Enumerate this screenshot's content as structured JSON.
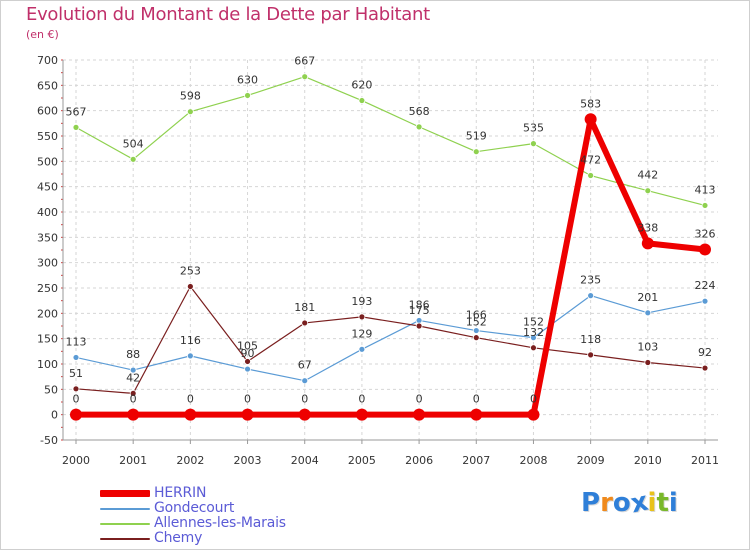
{
  "header": {
    "title": "Evolution du Montant de la Dette par Habitant",
    "subtitle": "(en €)"
  },
  "logo": {
    "letters": [
      "P",
      "r",
      "o",
      "x",
      "i",
      "t",
      "i"
    ],
    "colors": [
      "#2f7fd8",
      "#f08a1c",
      "#2f7fd8",
      "#2f7fd8",
      "#e8c21a",
      "#79b82a",
      "#2f7fd8"
    ]
  },
  "chart_data": {
    "type": "line",
    "title": "Evolution du Montant de la Dette par Habitant",
    "ylabel": "(en €)",
    "xlabel": "",
    "categories": [
      "2000",
      "2001",
      "2002",
      "2003",
      "2004",
      "2005",
      "2006",
      "2007",
      "2008",
      "2009",
      "2010",
      "2011"
    ],
    "ylim": [
      -50,
      700
    ],
    "yticks": [
      -50,
      0,
      50,
      100,
      150,
      200,
      250,
      300,
      350,
      400,
      450,
      500,
      550,
      600,
      650,
      700
    ],
    "grid": true,
    "legend_position": "bottom-left",
    "series": [
      {
        "name": "HERRIN",
        "color": "#ee0000",
        "values": [
          0,
          0,
          0,
          0,
          0,
          0,
          0,
          0,
          0,
          583,
          338,
          326
        ],
        "labels": [
          "0",
          "0",
          "0",
          "0",
          "0",
          "0",
          "0",
          "0",
          "0",
          "583",
          "338",
          "326"
        ]
      },
      {
        "name": "Gondecourt",
        "color": "#5b9bd5",
        "values": [
          113,
          88,
          116,
          90,
          67,
          129,
          186,
          166,
          152,
          235,
          201,
          224
        ],
        "labels": [
          "113",
          "88",
          "116",
          "90",
          "67",
          "129",
          "186",
          "166",
          "152",
          "235",
          "201",
          "224"
        ]
      },
      {
        "name": "Allennes-les-Marais",
        "color": "#8fd14f",
        "values": [
          567,
          504,
          598,
          630,
          667,
          620,
          568,
          519,
          535,
          472,
          442,
          413
        ],
        "labels": [
          "567",
          "504",
          "598",
          "630",
          "667",
          "620",
          "568",
          "519",
          "535",
          "472",
          "442",
          "413"
        ]
      },
      {
        "name": "Chemy",
        "color": "#7a1f1f",
        "values": [
          51,
          42,
          253,
          105,
          181,
          193,
          175,
          152,
          132,
          118,
          103,
          92
        ],
        "labels": [
          "51",
          "42",
          "253",
          "105",
          "181",
          "193",
          "175",
          "152",
          "132",
          "118",
          "103",
          "92"
        ]
      }
    ]
  }
}
